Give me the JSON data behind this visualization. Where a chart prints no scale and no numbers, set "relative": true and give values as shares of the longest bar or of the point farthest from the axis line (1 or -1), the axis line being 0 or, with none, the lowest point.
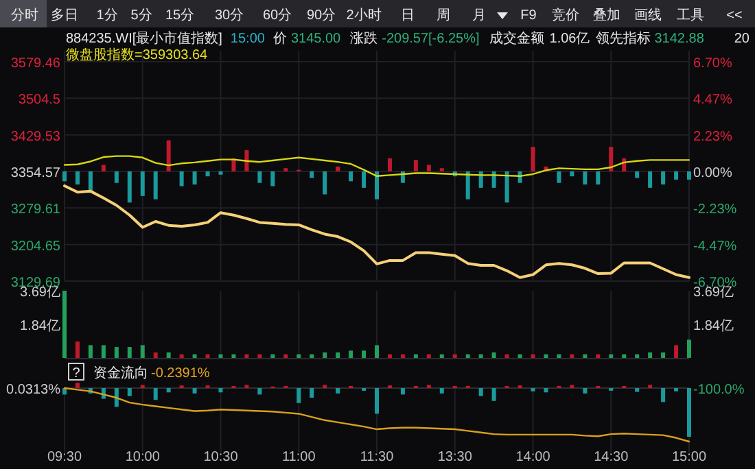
{
  "chart_data": [
    {
      "type": "line",
      "categories": [
        null,
        null,
        null,
        null,
        null,
        null,
        null,
        null,
        null,
        null,
        null,
        null,
        null,
        null,
        null,
        null,
        null,
        null,
        null,
        null,
        null,
        null,
        null,
        null,
        null,
        null,
        null,
        null,
        null,
        null,
        null,
        null,
        null,
        null,
        null,
        null,
        null,
        null,
        null,
        null,
        null,
        null,
        null,
        null,
        null,
        null,
        null,
        null,
        null
      ],
      "ylim": [
        3129.69,
        3579.46
      ],
      "yticks": [
        3129.69,
        3204.65,
        3279.61,
        3354.57,
        3429.53,
        3504.5,
        3579.46
      ],
      "y2lim": [
        -6.7,
        6.7
      ],
      "y2ticks": [
        {
          "value": -6.7,
          "label": "-6.70%"
        },
        {
          "value": -4.47,
          "label": "-4.47%"
        },
        {
          "value": -2.23,
          "label": "-2.23%"
        },
        {
          "value": 0,
          "label": "0.00%"
        },
        {
          "value": 2.23,
          "label": "2.23%"
        },
        {
          "value": 4.47,
          "label": "4.47%"
        },
        {
          "value": 6.7,
          "label": "6.70%"
        }
      ],
      "tick_labels": "y",
      "grid": true,
      "annotations": [
        "分时",
        "多日",
        "1分",
        "5分",
        "15分",
        "30分",
        "60分",
        "90分",
        "2小时",
        "日",
        "周",
        "月",
        "F9",
        "竞价",
        "叠加",
        "画线",
        "工具",
        "<<",
        "884235.WI[最小市值指数]",
        "15:00",
        "价",
        "3145.00",
        "涨跌",
        "-209.57[-6.25%]",
        "成交金额",
        "1.06亿",
        "领先指标",
        "3142.88",
        "20",
        "微盘股指数=359303.64"
      ],
      "series": [
        {
          "type": "bar",
          "axis": "y2",
          "values": [
            -0.6,
            -0.8,
            -1.3,
            0.4,
            -0.7,
            -1.9,
            -1.5,
            -1.7,
            1.9,
            -0.9,
            -0.8,
            -0.3,
            -0.2,
            0.8,
            1.3,
            -0.7,
            -0.9,
            0.2,
            0.1,
            -0.4,
            -1.4,
            0.3,
            -0.6,
            -1.0,
            -1.7,
            0.8,
            -0.7,
            0.7,
            0.4,
            0.2,
            -0.3,
            -1.7,
            -1.0,
            -1.0,
            -1.9,
            -0.7,
            1.5,
            0.3,
            -0.7,
            -0.3,
            -0.8,
            -0.8,
            1.5,
            0.8,
            -0.4,
            -1.0,
            -0.8,
            -0.5,
            -0.5
          ],
          "colors": [
            "#1b9a9c",
            "#1b9a9c",
            "#1b9a9c",
            "#c0182c",
            "#1b9a9c",
            "#1b9a9c",
            "#1b9a9c",
            "#1b9a9c",
            "#c0182c",
            "#1b9a9c",
            "#1b9a9c",
            "#1b9a9c",
            "#1b9a9c",
            "#c0182c",
            "#c0182c",
            "#1b9a9c",
            "#1b9a9c",
            "#c0182c",
            "#c0182c",
            "#1b9a9c",
            "#1b9a9c",
            "#c0182c",
            "#1b9a9c",
            "#1b9a9c",
            "#1b9a9c",
            "#c0182c",
            "#1b9a9c",
            "#c0182c",
            "#c0182c",
            "#c0182c",
            "#1b9a9c",
            "#1b9a9c",
            "#1b9a9c",
            "#1b9a9c",
            "#1b9a9c",
            "#1b9a9c",
            "#c0182c",
            "#c0182c",
            "#1b9a9c",
            "#1b9a9c",
            "#1b9a9c",
            "#1b9a9c",
            "#c0182c",
            "#c0182c",
            "#1b9a9c",
            "#1b9a9c",
            "#1b9a9c",
            "#1b9a9c",
            "#1b9a9c"
          ]
        },
        {
          "color": "#d8d810",
          "values": [
            3368,
            3369,
            3375,
            3384,
            3386,
            3386,
            3383,
            3372,
            3367,
            3371,
            3373,
            3376,
            3379,
            3379,
            3376,
            3374,
            3377,
            3380,
            3383,
            3380,
            3377,
            3374,
            3370,
            3358,
            3345,
            3347,
            3349,
            3351,
            3351,
            3350,
            3349,
            3348,
            3347,
            3347,
            3346,
            3345,
            3349,
            3357,
            3361,
            3360,
            3359,
            3359,
            3363,
            3373,
            3376,
            3378,
            3378,
            3378,
            3378
          ]
        },
        {
          "color": "#f4d078",
          "values": [
            3325,
            3312,
            3314,
            3300,
            3285,
            3265,
            3240,
            3252,
            3244,
            3242,
            3245,
            3250,
            3270,
            3265,
            3258,
            3250,
            3248,
            3246,
            3245,
            3235,
            3226,
            3221,
            3210,
            3192,
            3165,
            3172,
            3172,
            3188,
            3188,
            3185,
            3182,
            3166,
            3162,
            3162,
            3151,
            3137,
            3143,
            3163,
            3166,
            3163,
            3156,
            3145,
            3146,
            3167,
            3167,
            3167,
            3155,
            3143,
            3137
          ]
        }
      ]
    },
    {
      "type": "bar",
      "categories": [
        null,
        null,
        null,
        null,
        null,
        null,
        null,
        null,
        null,
        null,
        null,
        null,
        null,
        null,
        null,
        null,
        null,
        null,
        null,
        null,
        null,
        null,
        null,
        null,
        null,
        null,
        null,
        null,
        null,
        null,
        null,
        null,
        null,
        null,
        null,
        null,
        null,
        null,
        null,
        null,
        null,
        null,
        null,
        null,
        null,
        null,
        null,
        null,
        null
      ],
      "ylim": [
        0,
        3.69
      ],
      "yticks": [
        {
          "value": 1.84,
          "label": "1.84亿"
        },
        {
          "value": 3.69,
          "label": "3.69亿"
        }
      ],
      "y2lim": [
        0,
        3.69
      ],
      "y2ticks": [
        {
          "value": 1.84,
          "label": "1.84亿"
        },
        {
          "value": 3.69,
          "label": "3.69亿"
        }
      ],
      "tick_labels": "y",
      "grid": "x",
      "series": [
        {
          "values": [
            3.69,
            0.9,
            0.7,
            0.7,
            0.6,
            0.6,
            0.7,
            0.3,
            0.3,
            0.2,
            0.2,
            0.2,
            0.2,
            0.2,
            0.2,
            0.2,
            0.2,
            0.2,
            0.2,
            0.2,
            0.3,
            0.3,
            0.4,
            0.4,
            0.7,
            0.2,
            0.2,
            0.2,
            0.2,
            0.2,
            0.2,
            0.2,
            0.2,
            0.3,
            0.2,
            0.2,
            0.2,
            0.2,
            0.2,
            0.2,
            0.2,
            0.2,
            0.2,
            0.2,
            0.2,
            0.3,
            0.3,
            0.7,
            1.0
          ],
          "colors": [
            "#23a05a",
            "#c0182c",
            "#23a05a",
            "#23a05a",
            "#23a05a",
            "#23a05a",
            "#23a05a",
            "#c0182c",
            "#23a05a",
            "#c0182c",
            "#23a05a",
            "#c0182c",
            "#23a05a",
            "#23a05a",
            "#c0182c",
            "#c0182c",
            "#23a05a",
            "#c0182c",
            "#23a05a",
            "#23a05a",
            "#23a05a",
            "#23a05a",
            "#23a05a",
            "#23a05a",
            "#23a05a",
            "#c0182c",
            "#c0182c",
            "#23a05a",
            "#c0182c",
            "#23a05a",
            "#c0182c",
            "#23a05a",
            "#23a05a",
            "#23a05a",
            "#c0182c",
            "#23a05a",
            "#c0182c",
            "#23a05a",
            "#23a05a",
            "#c0182c",
            "#23a05a",
            "#c0182c",
            "#23a05a",
            "#23a05a",
            "#23a05a",
            "#23a05a",
            "#23a05a",
            "#c0182c",
            "#23a05a"
          ]
        }
      ]
    },
    {
      "type": "line",
      "relative": true,
      "categories": [
        "09:30",
        null,
        null,
        null,
        null,
        null,
        "10:00",
        null,
        null,
        null,
        null,
        null,
        "10:30",
        null,
        null,
        null,
        null,
        null,
        "11:00",
        null,
        null,
        null,
        null,
        null,
        "11:30",
        null,
        null,
        null,
        null,
        null,
        "13:30",
        null,
        null,
        null,
        null,
        null,
        "14:00",
        null,
        null,
        null,
        null,
        null,
        "14:30",
        null,
        null,
        null,
        null,
        null,
        "15:00"
      ],
      "tick_labels": "x",
      "grid": "x",
      "annotations": [
        "?",
        "资金流向",
        "-0.2391%",
        "0.0313%",
        "-100.0%"
      ],
      "series": [
        {
          "type": "bar",
          "values": [
            -0.12,
            0.1,
            -0.1,
            -0.2,
            -0.35,
            -0.15,
            0.06,
            -0.22,
            -0.08,
            0.05,
            -0.1,
            0.05,
            -0.08,
            0.04,
            0.06,
            -0.12,
            0.03,
            0.04,
            -0.28,
            -0.18,
            0.06,
            -0.1,
            0.04,
            -0.05,
            -0.48,
            0.05,
            -0.12,
            0.04,
            0.06,
            -0.1,
            0.04,
            0.04,
            -0.15,
            -0.24,
            0.04,
            0.05,
            -0.06,
            -0.08,
            0.04,
            0.06,
            -0.1,
            0.04,
            -0.05,
            0.04,
            -0.07,
            0.06,
            -0.26,
            -0.06,
            -0.91
          ],
          "colors": [
            "#1b9a9c",
            "#c0182c",
            "#1b9a9c",
            "#1b9a9c",
            "#1b9a9c",
            "#1b9a9c",
            "#c0182c",
            "#1b9a9c",
            "#1b9a9c",
            "#c0182c",
            "#1b9a9c",
            "#c0182c",
            "#1b9a9c",
            "#c0182c",
            "#c0182c",
            "#1b9a9c",
            "#c0182c",
            "#c0182c",
            "#1b9a9c",
            "#1b9a9c",
            "#c0182c",
            "#1b9a9c",
            "#c0182c",
            "#1b9a9c",
            "#1b9a9c",
            "#c0182c",
            "#1b9a9c",
            "#c0182c",
            "#c0182c",
            "#1b9a9c",
            "#c0182c",
            "#c0182c",
            "#1b9a9c",
            "#1b9a9c",
            "#c0182c",
            "#c0182c",
            "#1b9a9c",
            "#1b9a9c",
            "#c0182c",
            "#c0182c",
            "#1b9a9c",
            "#c0182c",
            "#1b9a9c",
            "#c0182c",
            "#1b9a9c",
            "#c0182c",
            "#1b9a9c",
            "#1b9a9c",
            "#1b9a9c"
          ]
        },
        {
          "color": "#d9a21b",
          "values": [
            0,
            -0.03,
            -0.06,
            -0.12,
            -0.18,
            -0.27,
            -0.31,
            -0.34,
            -0.37,
            -0.4,
            -0.43,
            -0.42,
            -0.4,
            -0.41,
            -0.42,
            -0.43,
            -0.44,
            -0.46,
            -0.48,
            -0.54,
            -0.6,
            -0.64,
            -0.68,
            -0.72,
            -0.77,
            -0.75,
            -0.74,
            -0.74,
            -0.75,
            -0.76,
            -0.77,
            -0.8,
            -0.83,
            -0.86,
            -0.87,
            -0.87,
            -0.87,
            -0.87,
            -0.87,
            -0.87,
            -0.89,
            -0.9,
            -0.86,
            -0.85,
            -0.86,
            -0.87,
            -0.88,
            -0.93,
            -1
          ]
        }
      ]
    }
  ]
}
